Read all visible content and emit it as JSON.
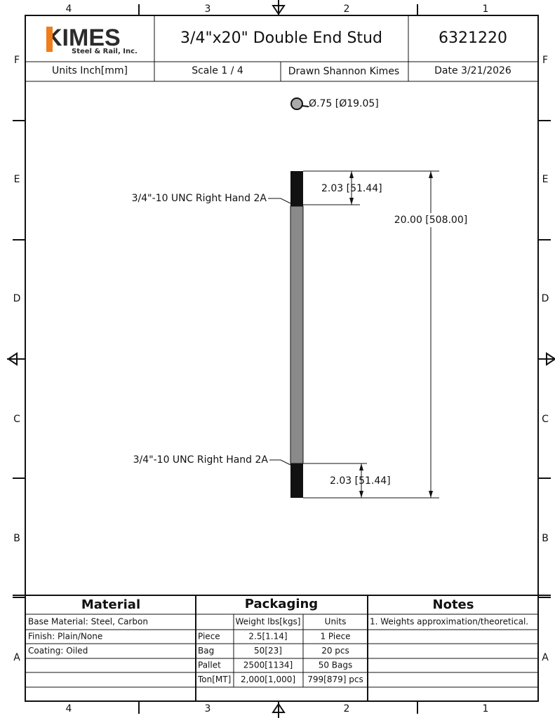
{
  "border": {
    "columns": [
      "4",
      "3",
      "2",
      "1"
    ],
    "rows": [
      "F",
      "E",
      "D",
      "C",
      "B",
      "A"
    ]
  },
  "title_block": {
    "logo": "KIMES",
    "logo_subtitle": "Steel & Rail, Inc.",
    "title": "3/4\"x20\" Double End Stud",
    "part_number": "6321220",
    "units": "Units Inch[mm]",
    "scale": "Scale 1 / 4",
    "drawn_by": "Drawn Shannon Kimes",
    "date": "Date 3/21/2026"
  },
  "drawing": {
    "diameter": "Ø.75 [Ø19.05]",
    "thread_top": "3/4\"-10 UNC Right Hand 2A",
    "thread_bottom": "3/4\"-10 UNC Right Hand 2A",
    "thread_length_top": "2.03 [51.44]",
    "thread_length_bottom": "2.03 [51.44]",
    "overall_length": "20.00 [508.00]"
  },
  "material": {
    "title": "Material",
    "rows": [
      "Base Material: Steel, Carbon",
      "Finish: Plain/None",
      "Coating: Oiled"
    ]
  },
  "packaging": {
    "title": "Packaging",
    "header": [
      "Weight lbs[kgs]",
      "Units"
    ],
    "rows": [
      [
        "Piece",
        "2.5[1.14]",
        "1 Piece"
      ],
      [
        "Bag",
        "50[23]",
        "20 pcs"
      ],
      [
        "Pallet",
        "2500[1134]",
        "50 Bags"
      ],
      [
        "Ton[MT]",
        "2,000[1,000]",
        "799[879] pcs"
      ]
    ]
  },
  "notes": {
    "title": "Notes",
    "rows": [
      "1. Weights approximation/theoretical."
    ]
  }
}
